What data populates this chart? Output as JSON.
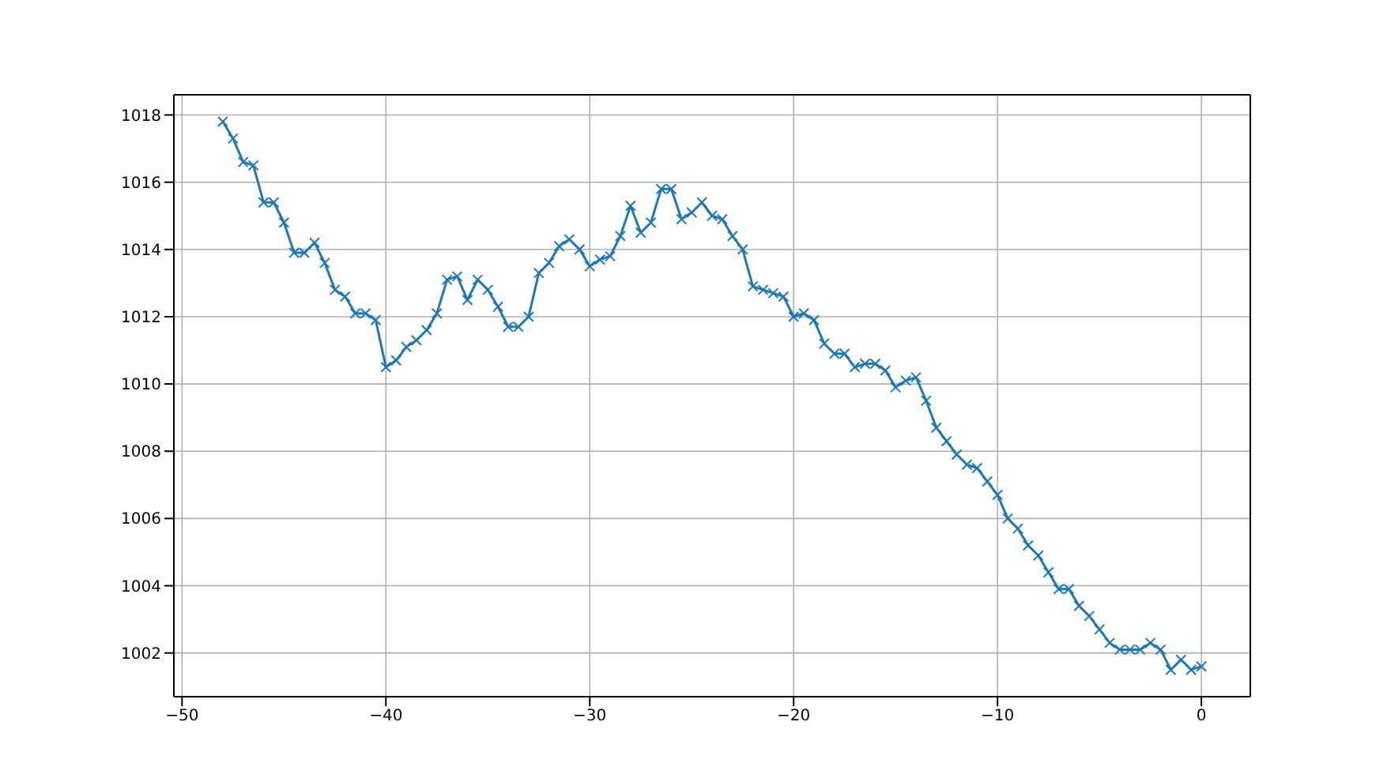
{
  "chart_data": {
    "type": "line",
    "x": [
      -48,
      -47.5,
      -47,
      -46.5,
      -46,
      -45.5,
      -45,
      -44.5,
      -44,
      -43.5,
      -43,
      -42.5,
      -42,
      -41.5,
      -41,
      -40.5,
      -40,
      -39.5,
      -39,
      -38.5,
      -38,
      -37.5,
      -37,
      -36.5,
      -36,
      -35.5,
      -35,
      -34.5,
      -34,
      -33.5,
      -33,
      -32.5,
      -32,
      -31.5,
      -31,
      -30.5,
      -30,
      -29.5,
      -29,
      -28.5,
      -28,
      -27.5,
      -27,
      -26.5,
      -26,
      -25.5,
      -25,
      -24.5,
      -24,
      -23.5,
      -23,
      -22.5,
      -22,
      -21.5,
      -21,
      -20.5,
      -20,
      -19.5,
      -19,
      -18.5,
      -18,
      -17.5,
      -17,
      -16.5,
      -16,
      -15.5,
      -15,
      -14.5,
      -14,
      -13.5,
      -13,
      -12.5,
      -12,
      -11.5,
      -11,
      -10.5,
      -10,
      -9.5,
      -9,
      -8.5,
      -8,
      -7.5,
      -7,
      -6.5,
      -6,
      -5.5,
      -5,
      -4.5,
      -4,
      -3.5,
      -3,
      -2.5,
      -2,
      -1.5,
      -1,
      -0.5,
      0
    ],
    "series": [
      {
        "color": "#1f77b4",
        "values": [
          1017.8,
          1017.3,
          1016.6,
          1016.5,
          1015.4,
          1015.4,
          1014.8,
          1013.9,
          1013.9,
          1014.2,
          1013.6,
          1012.8,
          1012.6,
          1012.1,
          1012.1,
          1011.9,
          1010.5,
          1010.7,
          1011.1,
          1011.3,
          1011.6,
          1012.1,
          1013.1,
          1013.2,
          1012.5,
          1013.1,
          1012.8,
          1012.3,
          1011.7,
          1011.7,
          1012.0,
          1013.3,
          1013.6,
          1014.1,
          1014.3,
          1014.0,
          1013.5,
          1013.7,
          1013.8,
          1014.4,
          1015.3,
          1014.5,
          1014.8,
          1015.8,
          1015.8,
          1014.9,
          1015.1,
          1015.4,
          1015.0,
          1014.9,
          1014.4,
          1014.0,
          1012.9,
          1012.8,
          1012.7,
          1012.6,
          1012.0,
          1012.1,
          1011.9,
          1011.2,
          1010.9,
          1010.9,
          1010.5,
          1010.6,
          1010.6,
          1010.4,
          1009.9,
          1010.1,
          1010.2,
          1009.5,
          1008.7,
          1008.3,
          1007.9,
          1007.6,
          1007.5,
          1007.1,
          1006.7,
          1006.0,
          1005.7,
          1005.2,
          1004.9,
          1004.4,
          1003.9,
          1003.9,
          1003.4,
          1003.1,
          1002.7,
          1002.3,
          1002.1,
          1002.1,
          1002.1,
          1002.3,
          1002.1,
          1001.5,
          1001.8,
          1001.5,
          1001.6
        ]
      }
    ],
    "xlim": [
      -50.4,
      2.4
    ],
    "xticks": [
      -50,
      -40,
      -30,
      -20,
      -10,
      0
    ],
    "ylim": [
      1000.7,
      1018.6
    ],
    "yticks": [
      1002,
      1004,
      1006,
      1008,
      1010,
      1012,
      1014,
      1016,
      1018
    ],
    "grid": true,
    "marker": "cross",
    "line_style": "solid"
  }
}
